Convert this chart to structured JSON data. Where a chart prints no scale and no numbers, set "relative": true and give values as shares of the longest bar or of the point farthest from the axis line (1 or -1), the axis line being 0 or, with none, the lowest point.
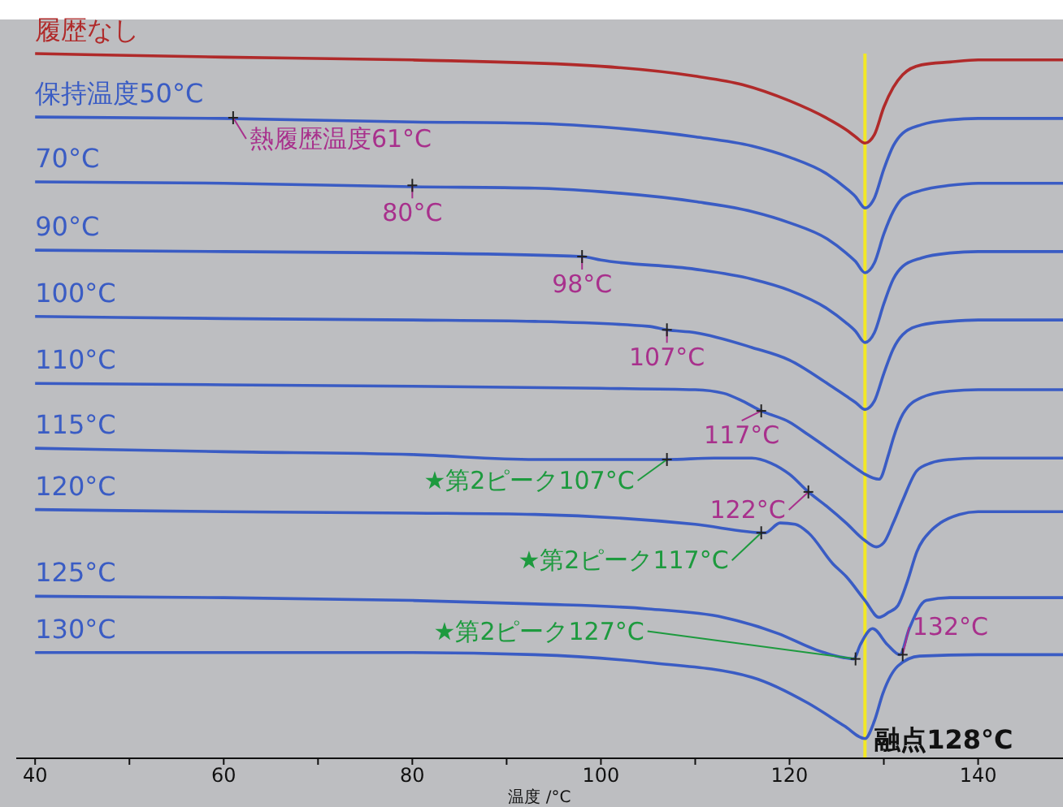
{
  "chart_data": {
    "type": "line",
    "relative": true,
    "xlabel": "温度 /°C",
    "xlim": [
      38,
      149
    ],
    "xticks": [
      40,
      {
        "value": 50,
        "label": null
      },
      60,
      {
        "value": 70,
        "label": null
      },
      80,
      {
        "value": 90,
        "label": null
      },
      100,
      {
        "value": 110,
        "label": null
      },
      120,
      {
        "value": 130,
        "label": null
      },
      140
    ],
    "marker": "none",
    "series": [
      {
        "name": "履歴なし",
        "color": "#b02a2a",
        "x": [
          40,
          60,
          80,
          100,
          110,
          115,
          120,
          124,
          126,
          127,
          128,
          129,
          130,
          131,
          132,
          134,
          137,
          140,
          149
        ],
        "values": [
          1,
          0.995,
          0.991,
          0.982,
          0.968,
          0.956,
          0.933,
          0.908,
          0.892,
          0.882,
          0.873,
          0.885,
          0.924,
          0.952,
          0.97,
          0.984,
          0.988,
          0.991,
          0.991
        ]
      },
      {
        "name": "保持温度50°C",
        "color": "#3a5cc4",
        "x": [
          40,
          60,
          80,
          93,
          100,
          110,
          116,
          120,
          124,
          126,
          127,
          128,
          129,
          130,
          131,
          132,
          134,
          137,
          140,
          149
        ],
        "values": [
          0.91,
          0.908,
          0.903,
          0.901,
          0.896,
          0.882,
          0.869,
          0.853,
          0.829,
          0.809,
          0.797,
          0.781,
          0.795,
          0.836,
          0.869,
          0.887,
          0.899,
          0.906,
          0.908,
          0.908
        ]
      },
      {
        "name": "70°C",
        "color": "#3a5cc4",
        "x": [
          40,
          60,
          80,
          93,
          100,
          110,
          116,
          120,
          124,
          126,
          127,
          128,
          129,
          130,
          131,
          132,
          134,
          137,
          140,
          149
        ],
        "values": [
          0.818,
          0.816,
          0.811,
          0.809,
          0.804,
          0.79,
          0.776,
          0.76,
          0.737,
          0.717,
          0.705,
          0.689,
          0.703,
          0.744,
          0.776,
          0.795,
          0.806,
          0.813,
          0.816,
          0.816
        ]
      },
      {
        "name": "90°C",
        "color": "#3a5cc4",
        "x": [
          40,
          60,
          80,
          98,
          100,
          110,
          116,
          120,
          124,
          126,
          127,
          128,
          129,
          130,
          131,
          132,
          134,
          137,
          140,
          149
        ],
        "values": [
          0.721,
          0.719,
          0.717,
          0.712,
          0.707,
          0.694,
          0.68,
          0.664,
          0.638,
          0.618,
          0.606,
          0.59,
          0.604,
          0.645,
          0.68,
          0.698,
          0.71,
          0.717,
          0.719,
          0.719
        ]
      },
      {
        "name": "100°C",
        "color": "#3a5cc4",
        "x": [
          40,
          60,
          80,
          93,
          105,
          107,
          110,
          116,
          120,
          124,
          126,
          127,
          128,
          129,
          130,
          131,
          132,
          134,
          137,
          140,
          149
        ],
        "values": [
          0.627,
          0.624,
          0.622,
          0.62,
          0.613,
          0.608,
          0.604,
          0.583,
          0.565,
          0.532,
          0.514,
          0.505,
          0.495,
          0.507,
          0.546,
          0.581,
          0.601,
          0.615,
          0.62,
          0.622,
          0.622
        ]
      },
      {
        "name": "110°C",
        "color": "#3a5cc4",
        "x": [
          40,
          60,
          80,
          100,
          110,
          113,
          115,
          117,
          120,
          122,
          125,
          127,
          128,
          129.5,
          130.5,
          131,
          132,
          134,
          137,
          140,
          149
        ],
        "values": [
          0.532,
          0.53,
          0.528,
          0.525,
          0.523,
          0.518,
          0.507,
          0.493,
          0.477,
          0.459,
          0.431,
          0.412,
          0.403,
          0.396,
          0.431,
          0.454,
          0.488,
          0.512,
          0.521,
          0.523,
          0.523
        ]
      },
      {
        "name": "115°C",
        "color": "#3a5cc4",
        "x": [
          40,
          60,
          80,
          93,
          107,
          112,
          116,
          118,
          120,
          122,
          124,
          126,
          128,
          129.2,
          130,
          131,
          132,
          133.5,
          135,
          137,
          140,
          149
        ],
        "values": [
          0.44,
          0.435,
          0.431,
          0.424,
          0.424,
          0.426,
          0.426,
          0.419,
          0.403,
          0.378,
          0.357,
          0.334,
          0.309,
          0.3,
          0.306,
          0.334,
          0.366,
          0.408,
          0.419,
          0.424,
          0.426,
          0.426
        ]
      },
      {
        "name": "120°C",
        "color": "#3a5cc4",
        "x": [
          40,
          60,
          80,
          93,
          110,
          117.4,
          119,
          120.6,
          122,
          124.6,
          126,
          128,
          129.5,
          130.5,
          131.5,
          132.5,
          133.5,
          135,
          136,
          138,
          140,
          149
        ],
        "values": [
          0.353,
          0.35,
          0.348,
          0.346,
          0.332,
          0.32,
          0.334,
          0.332,
          0.32,
          0.276,
          0.258,
          0.224,
          0.2,
          0.207,
          0.217,
          0.251,
          0.293,
          0.323,
          0.334,
          0.346,
          0.35,
          0.35
        ]
      },
      {
        "name": "125°C",
        "color": "#3a5cc4",
        "x": [
          40,
          60,
          80,
          93,
          105,
          113,
          118.8,
          122.8,
          125.7,
          126.8,
          127.5,
          128.8,
          130.4,
          131.7,
          132.7,
          134.5,
          137,
          149
        ],
        "values": [
          0.23,
          0.228,
          0.224,
          0.219,
          0.212,
          0.2,
          0.177,
          0.154,
          0.143,
          0.141,
          0.161,
          0.184,
          0.161,
          0.147,
          0.184,
          0.224,
          0.228,
          0.228
        ]
      },
      {
        "name": "130°C",
        "color": "#3a5cc4",
        "x": [
          40,
          60,
          80,
          93,
          105,
          116,
          122,
          125.8,
          128,
          129,
          129.9,
          131.5,
          133.8,
          140,
          149
        ],
        "values": [
          0.15,
          0.15,
          0.15,
          0.147,
          0.136,
          0.115,
          0.078,
          0.046,
          0.028,
          0.053,
          0.092,
          0.131,
          0.145,
          0.147,
          0.147
        ]
      }
    ],
    "ref_lines": [
      {
        "axis": "x",
        "value": 128,
        "label": "融点128°C",
        "color": "#f2e826"
      }
    ],
    "annotations": [
      {
        "text": "熱履歴温度61°C",
        "x": 61,
        "y": 0.909
      },
      {
        "text": "80°C",
        "x": 80,
        "y": 0.813
      },
      {
        "text": "98°C",
        "x": 98,
        "y": 0.712
      },
      {
        "text": "107°C",
        "x": 107,
        "y": 0.608
      },
      {
        "text": "117°C",
        "x": 117,
        "y": 0.493
      },
      {
        "text": "122°C",
        "x": 122,
        "y": 0.378
      },
      {
        "text": "★第2ピーク107°C",
        "x": 107,
        "y": 0.424
      },
      {
        "text": "★第2ピーク117°C",
        "x": 117,
        "y": 0.32
      },
      {
        "text": "★第2ピーク127°C",
        "x": 127,
        "y": 0.141
      },
      {
        "text": "132°C",
        "x": 132,
        "y": 0.147
      }
    ]
  }
}
